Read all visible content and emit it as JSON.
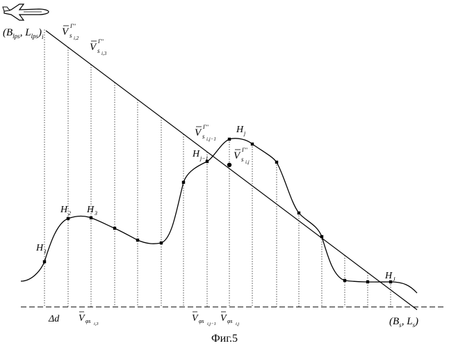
{
  "aircraft": {
    "icon": "airplane-icon"
  },
  "labels": {
    "start_point": {
      "open": "(",
      "b": "B",
      "b_sub": "lps",
      "sep": ", ",
      "l": "L",
      "l_sub": "lps",
      "close": ")",
      "index": "i"
    },
    "end_point": {
      "open": "(",
      "b": "B",
      "b_sub": "s",
      "sep": ", ",
      "l": "L",
      "l_sub": "s",
      "close": ")"
    },
    "v_main": "V",
    "v_sup": "Γ\"",
    "v_sub_i2": "s",
    "v_sub_i2_idx": "i,2",
    "v_sub_i3_idx": "i,3",
    "v_sub_ij1_idx": "i,j−1",
    "v_sub_ij_idx": "i,j",
    "vphi_main": "V",
    "vphi_sub": "φs",
    "vphi_i3_idx": "i,3",
    "vphi_ij1_idx": "i,j−1",
    "vphi_ij_idx": "i,j",
    "delta_d": "Δd",
    "h": "H",
    "h1_idx": "1",
    "h2_idx": "2",
    "h3_idx": "3",
    "hj1_idx": "j−1",
    "hj_idx": "j",
    "hJ_idx": "J"
  },
  "caption": "Фиг.5"
}
